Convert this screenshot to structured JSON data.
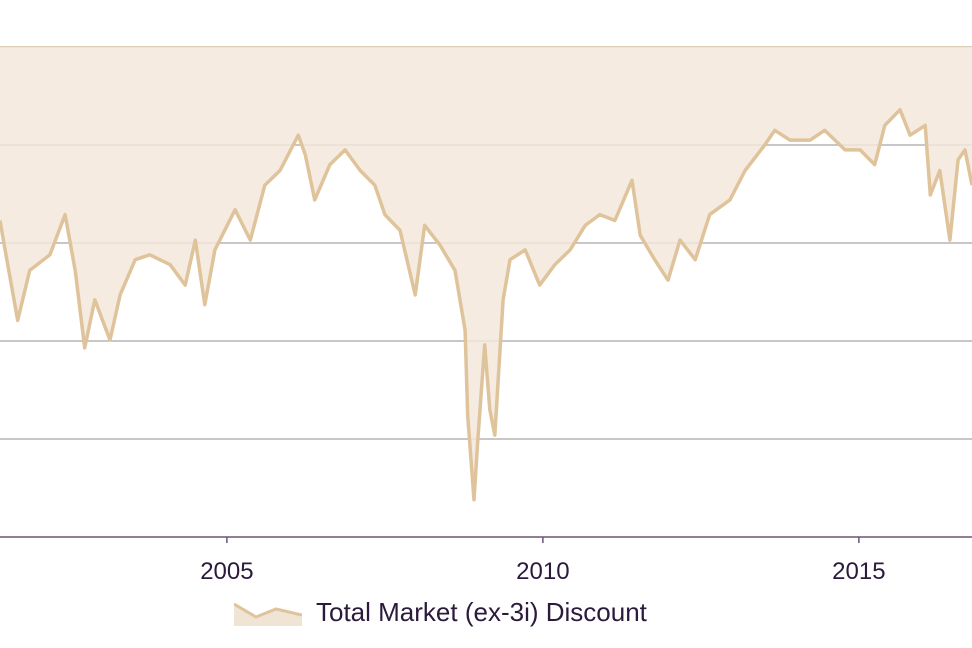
{
  "chart_data": {
    "type": "area",
    "title": "",
    "xlabel": "",
    "ylabel": "",
    "xlim": [
      2001.41,
      2016.79
    ],
    "ylim": [
      -50,
      0
    ],
    "y_gridlines": [
      0,
      -10,
      -20,
      -30,
      -40
    ],
    "x_ticks": [
      2005,
      2010,
      2015
    ],
    "x_tick_labels": [
      "2005",
      "2010",
      "2015"
    ],
    "grid": true,
    "legend_position": "bottom",
    "colors": {
      "fill": "#f3e7da",
      "line": "#dfc39b",
      "grid": "#a9a4a8",
      "axis": "#6b5478",
      "text": "#2b1a3b"
    },
    "series": [
      {
        "name": "Total Market (ex-3i) Discount",
        "x": [
          2001.41,
          2001.49,
          2001.69,
          2001.88,
          2002.2,
          2002.44,
          2002.6,
          2002.75,
          2002.91,
          2003.15,
          2003.31,
          2003.55,
          2003.78,
          2004.1,
          2004.34,
          2004.5,
          2004.65,
          2004.81,
          2005.13,
          2005.37,
          2005.6,
          2005.84,
          2006.13,
          2006.24,
          2006.39,
          2006.63,
          2006.87,
          2007.11,
          2007.34,
          2007.5,
          2007.74,
          2007.98,
          2008.13,
          2008.37,
          2008.61,
          2008.77,
          2008.81,
          2008.91,
          2008.97,
          2009.08,
          2009.16,
          2009.24,
          2009.37,
          2009.48,
          2009.72,
          2009.95,
          2010.19,
          2010.43,
          2010.67,
          2010.9,
          2011.14,
          2011.41,
          2011.54,
          2011.77,
          2011.98,
          2012.17,
          2012.41,
          2012.64,
          2012.96,
          2013.2,
          2013.51,
          2013.67,
          2013.91,
          2014.23,
          2014.46,
          2014.78,
          2015.02,
          2015.25,
          2015.41,
          2015.65,
          2015.81,
          2016.05,
          2016.13,
          2016.28,
          2016.44,
          2016.57,
          2016.68,
          2016.79
        ],
        "values": [
          -17.7,
          -20.7,
          -27.9,
          -22.8,
          -21.2,
          -17.1,
          -22.8,
          -30.7,
          -25.8,
          -29.9,
          -25.3,
          -21.7,
          -21.2,
          -22.2,
          -24.3,
          -19.7,
          -26.3,
          -20.7,
          -16.6,
          -19.7,
          -14.1,
          -12.6,
          -9.0,
          -11.0,
          -15.6,
          -12.0,
          -10.5,
          -12.6,
          -14.1,
          -17.1,
          -18.7,
          -25.3,
          -18.2,
          -20.2,
          -22.8,
          -28.9,
          -37.6,
          -46.2,
          -40.1,
          -30.4,
          -37.0,
          -39.6,
          -25.8,
          -21.7,
          -20.7,
          -24.3,
          -22.2,
          -20.7,
          -18.2,
          -17.1,
          -17.7,
          -13.6,
          -19.2,
          -21.7,
          -23.8,
          -19.7,
          -21.7,
          -17.1,
          -15.6,
          -12.6,
          -10.0,
          -8.5,
          -9.5,
          -9.5,
          -8.5,
          -10.5,
          -10.5,
          -12.0,
          -8.0,
          -6.4,
          -9.0,
          -8.0,
          -15.1,
          -12.6,
          -19.7,
          -11.5,
          -10.5,
          -14.1
        ]
      }
    ]
  },
  "legend": {
    "label": "Total Market (ex-3i) Discount"
  }
}
